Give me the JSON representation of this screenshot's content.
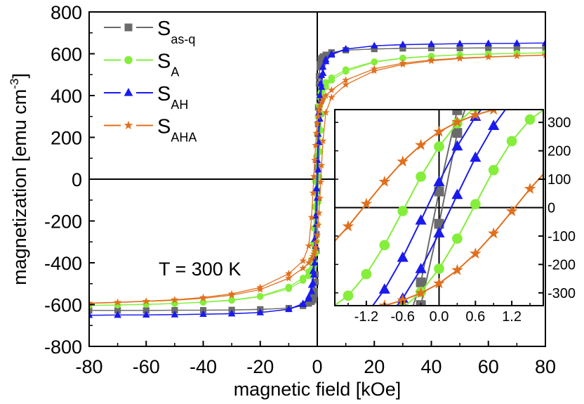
{
  "chart_data": [
    {
      "type": "line",
      "xlabel": "magnetic field [kOe]",
      "ylabel": "magnetization [emu cm",
      "ylabel_sup": "-3",
      "ylabel_close": "]",
      "xlim": [
        -80,
        80
      ],
      "ylim": [
        -800,
        800
      ],
      "xticks": [
        "-80",
        "-60",
        "-40",
        "-20",
        "0",
        "20",
        "40",
        "60",
        "80"
      ],
      "yticks": [
        "-800",
        "-600",
        "-400",
        "-200",
        "0",
        "200",
        "400",
        "600",
        "800"
      ],
      "grid": false,
      "legend_position": "top-left",
      "annotation": "T = 300 K",
      "x": [
        -80,
        -70,
        -60,
        -50,
        -40,
        -30,
        -20,
        -10,
        -5,
        -3,
        -2,
        -1.5,
        -1.2,
        -0.9,
        -0.6,
        -0.3,
        0,
        0.3,
        0.6,
        0.9,
        1.2,
        1.5,
        2,
        3,
        5,
        10,
        20,
        30,
        40,
        50,
        60,
        70,
        80
      ],
      "series": [
        {
          "name": "S",
          "sub": "as-q",
          "color": "#6b6b6b",
          "marker": "square",
          "ascending": [
            -628,
            -628,
            -628,
            -627,
            -627,
            -626,
            -623,
            -617,
            -606,
            -595,
            -587,
            -579,
            -571,
            -549,
            -492,
            -343,
            -57,
            263,
            456,
            536,
            565,
            577,
            586,
            595,
            606,
            617,
            623,
            626,
            627,
            627,
            628,
            628,
            628
          ],
          "descending": [
            -628,
            -628,
            -628,
            -627,
            -627,
            -626,
            -623,
            -617,
            -606,
            -595,
            -586,
            -577,
            -565,
            -536,
            -456,
            -263,
            57,
            343,
            492,
            549,
            571,
            579,
            587,
            595,
            606,
            617,
            623,
            626,
            627,
            627,
            628,
            628,
            628
          ]
        },
        {
          "name": "S",
          "sub": "A",
          "color": "#84ee3a",
          "marker": "circle",
          "ascending": [
            -604,
            -602,
            -599,
            -595,
            -589,
            -580,
            -562,
            -524,
            -485,
            -463,
            -446,
            -430,
            -414,
            -391,
            -354,
            -297,
            -215,
            -109,
            12,
            132,
            234,
            310,
            386,
            442,
            473,
            516,
            560,
            578,
            588,
            595,
            599,
            602,
            604
          ],
          "descending": [
            -604,
            -602,
            -599,
            -595,
            -588,
            -578,
            -560,
            -516,
            -473,
            -442,
            -386,
            -310,
            -234,
            -132,
            -12,
            109,
            215,
            297,
            354,
            391,
            414,
            430,
            446,
            463,
            485,
            524,
            562,
            580,
            589,
            595,
            599,
            602,
            604
          ]
        },
        {
          "name": "S",
          "sub": "AH",
          "color": "#1a1aee",
          "marker": "triangle",
          "ascending": [
            -651,
            -650,
            -649,
            -648,
            -646,
            -644,
            -638,
            -623,
            -599,
            -573,
            -537,
            -497,
            -457,
            -400,
            -320,
            -216,
            -90,
            45,
            176,
            288,
            376,
            440,
            507,
            563,
            595,
            622,
            638,
            643,
            646,
            648,
            649,
            650,
            651
          ],
          "descending": [
            -651,
            -650,
            -649,
            -648,
            -646,
            -643,
            -638,
            -622,
            -595,
            -563,
            -507,
            -440,
            -376,
            -288,
            -176,
            -45,
            90,
            216,
            320,
            400,
            457,
            497,
            537,
            573,
            599,
            623,
            638,
            644,
            646,
            648,
            649,
            650,
            651
          ]
        },
        {
          "name": "S",
          "sub": "AHA",
          "color": "#e0701e",
          "marker": "star",
          "ascending": [
            -594,
            -590,
            -585,
            -579,
            -570,
            -555,
            -528,
            -474,
            -426,
            -400,
            -382,
            -369,
            -358,
            -345,
            -326,
            -301,
            -267,
            -220,
            -162,
            -91,
            -13,
            66,
            183,
            319,
            391,
            452,
            518,
            549,
            566,
            577,
            584,
            589,
            593
          ],
          "descending": [
            -593,
            -589,
            -584,
            -577,
            -566,
            -549,
            -518,
            -452,
            -391,
            -319,
            -183,
            -66,
            13,
            91,
            162,
            220,
            267,
            301,
            326,
            345,
            358,
            369,
            382,
            400,
            426,
            474,
            528,
            555,
            570,
            579,
            585,
            590,
            594
          ]
        }
      ]
    },
    {
      "type": "line",
      "role": "inset",
      "xlim": [
        -1.72,
        1.72
      ],
      "ylim": [
        -345,
        345
      ],
      "xticks": [
        "-1.2",
        "-0.6",
        "0.0",
        "0.6",
        "1.2"
      ],
      "yticks": [
        "-300",
        "-200",
        "-100",
        "0",
        "100",
        "200",
        "300"
      ],
      "ytick_side": "right",
      "grid": false,
      "note_series": "same series as main plot, zoomed near origin"
    }
  ]
}
